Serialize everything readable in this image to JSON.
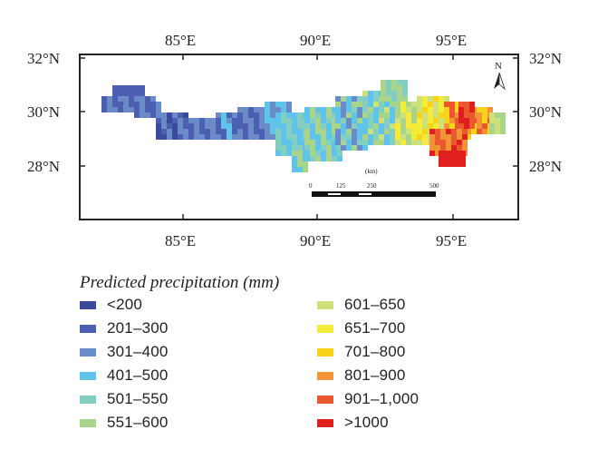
{
  "map": {
    "top_lon_labels": [
      "85°E",
      "90°E",
      "95°E"
    ],
    "bottom_lon_labels": [
      "85°E",
      "90°E",
      "95°E"
    ],
    "left_lat_labels": [
      "32°N",
      "30°N",
      "28°N"
    ],
    "right_lat_labels": [
      "32°N",
      "30°N",
      "28°N"
    ],
    "north_label": "N",
    "scale_bar": {
      "unit": "(km)",
      "ticks": [
        "0",
        "125",
        "250",
        "500"
      ]
    }
  },
  "legend": {
    "title": "Predicted precipitation (mm)",
    "items": [
      {
        "label": "<200",
        "color": "#3b4a9a"
      },
      {
        "label": "201–300",
        "color": "#4c5fb0"
      },
      {
        "label": "301–400",
        "color": "#6b8ac8"
      },
      {
        "label": "401–500",
        "color": "#5fc3ea"
      },
      {
        "label": "501–550",
        "color": "#82cfc2"
      },
      {
        "label": "551–600",
        "color": "#a9d48c"
      },
      {
        "label": "601–650",
        "color": "#cde07a"
      },
      {
        "label": "651–700",
        "color": "#f5ec3a"
      },
      {
        "label": "701–800",
        "color": "#f9d21a"
      },
      {
        "label": "801–900",
        "color": "#f29336"
      },
      {
        "label": "901–1,000",
        "color": "#e9582f"
      },
      {
        "label": ">1000",
        "color": "#e0201f"
      }
    ]
  }
}
